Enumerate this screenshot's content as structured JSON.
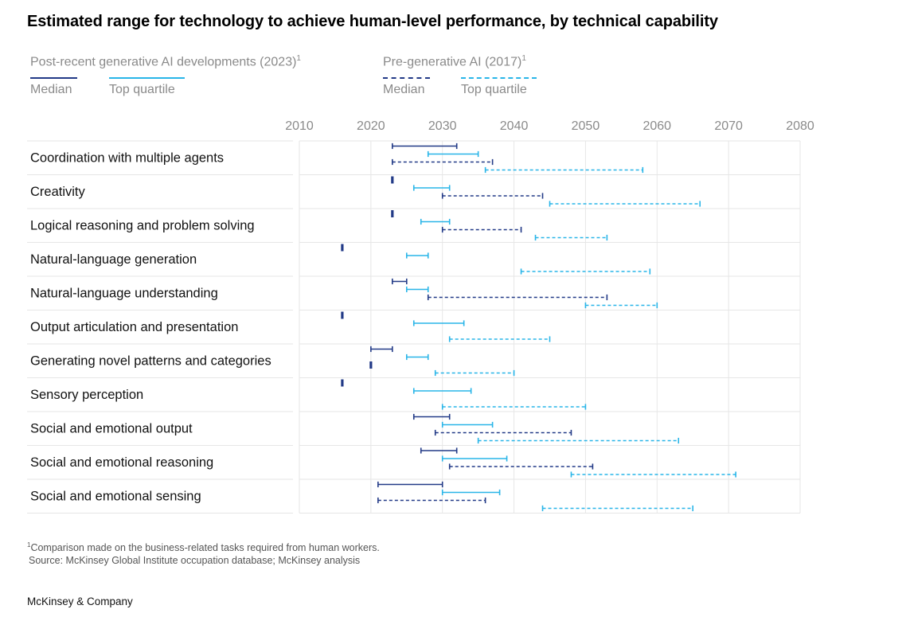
{
  "title": "Estimated range for technology to achieve human-level performance, by technical capability",
  "legend": {
    "groups": [
      {
        "name": "Post-recent generative AI developments (2023)",
        "sup": "1",
        "items": [
          {
            "label": "Median",
            "color": "#223a87",
            "style": "solid"
          },
          {
            "label": "Top quartile",
            "color": "#29b5e8",
            "style": "solid"
          }
        ]
      },
      {
        "name": "Pre-generative AI (2017)",
        "sup": "1",
        "items": [
          {
            "label": "Median",
            "color": "#223a87",
            "style": "dashed"
          },
          {
            "label": "Top quartile",
            "color": "#29b5e8",
            "style": "dashed"
          }
        ]
      }
    ]
  },
  "chart_data": {
    "type": "range-dumbbell",
    "x_ticks": [
      "2010",
      "2020",
      "2030",
      "2040",
      "2050",
      "2060",
      "2070",
      "2080"
    ],
    "xlim": [
      2010,
      2080
    ],
    "grid": true,
    "series_order": [
      "median_2023",
      "top_quartile_2023",
      "median_2017",
      "top_quartile_2017"
    ],
    "series_style": {
      "median_2023": {
        "color": "#223a87",
        "dashed": false
      },
      "top_quartile_2023": {
        "color": "#29b5e8",
        "dashed": false
      },
      "median_2017": {
        "color": "#223a87",
        "dashed": true
      },
      "top_quartile_2017": {
        "color": "#29b5e8",
        "dashed": true
      }
    },
    "rows": [
      {
        "label": "Coordination with multiple agents",
        "median_2023": [
          2023,
          2032
        ],
        "median_2017": [
          2023,
          2037
        ],
        "top_quartile_2023": [
          2028,
          2035
        ],
        "top_quartile_2017": [
          2036,
          2058
        ]
      },
      {
        "label": "Creativity",
        "median_2023": [
          2023,
          2023
        ],
        "median_2017": [
          2030,
          2044
        ],
        "top_quartile_2023": [
          2026,
          2031
        ],
        "top_quartile_2017": [
          2045,
          2066
        ]
      },
      {
        "label": "Logical reasoning and problem solving",
        "median_2023": [
          2023,
          2023
        ],
        "median_2017": [
          2030,
          2041
        ],
        "top_quartile_2023": [
          2027,
          2031
        ],
        "top_quartile_2017": [
          2043,
          2053
        ]
      },
      {
        "label": "Natural-language generation",
        "median_2023": [
          2016,
          2016
        ],
        "median_2017": null,
        "top_quartile_2023": [
          2025,
          2028
        ],
        "top_quartile_2017": [
          2041,
          2059
        ]
      },
      {
        "label": "Natural-language understanding",
        "median_2023": [
          2023,
          2025
        ],
        "median_2017": [
          2028,
          2053
        ],
        "top_quartile_2023": [
          2025,
          2028
        ],
        "top_quartile_2017": [
          2050,
          2060
        ]
      },
      {
        "label": "Output articulation and presentation",
        "median_2023": [
          2016,
          2016
        ],
        "median_2017": null,
        "top_quartile_2023": [
          2026,
          2033
        ],
        "top_quartile_2017": [
          2031,
          2045
        ]
      },
      {
        "label": "Generating novel patterns and categories",
        "median_2023": [
          2020,
          2023
        ],
        "median_2017": [
          2020,
          2020
        ],
        "top_quartile_2023": [
          2025,
          2028
        ],
        "top_quartile_2017": [
          2029,
          2040
        ]
      },
      {
        "label": "Sensory perception",
        "median_2023": [
          2016,
          2016
        ],
        "median_2017": null,
        "top_quartile_2023": [
          2026,
          2034
        ],
        "top_quartile_2017": [
          2030,
          2050
        ]
      },
      {
        "label": "Social and emotional output",
        "median_2023": [
          2026,
          2031
        ],
        "median_2017": [
          2029,
          2048
        ],
        "top_quartile_2023": [
          2030,
          2037
        ],
        "top_quartile_2017": [
          2035,
          2063
        ]
      },
      {
        "label": "Social and emotional reasoning",
        "median_2023": [
          2027,
          2032
        ],
        "median_2017": [
          2031,
          2051
        ],
        "top_quartile_2023": [
          2030,
          2039
        ],
        "top_quartile_2017": [
          2048,
          2071
        ]
      },
      {
        "label": "Social and emotional sensing",
        "median_2023": [
          2021,
          2030
        ],
        "median_2017": [
          2021,
          2036
        ],
        "top_quartile_2023": [
          2030,
          2038
        ],
        "top_quartile_2017": [
          2044,
          2065
        ]
      }
    ]
  },
  "footnote": {
    "sup": "1",
    "text": "Comparison made on the business-related tasks required from human workers.",
    "source": "Source: McKinsey Global Institute occupation database; McKinsey analysis"
  },
  "brand": "McKinsey & Company"
}
